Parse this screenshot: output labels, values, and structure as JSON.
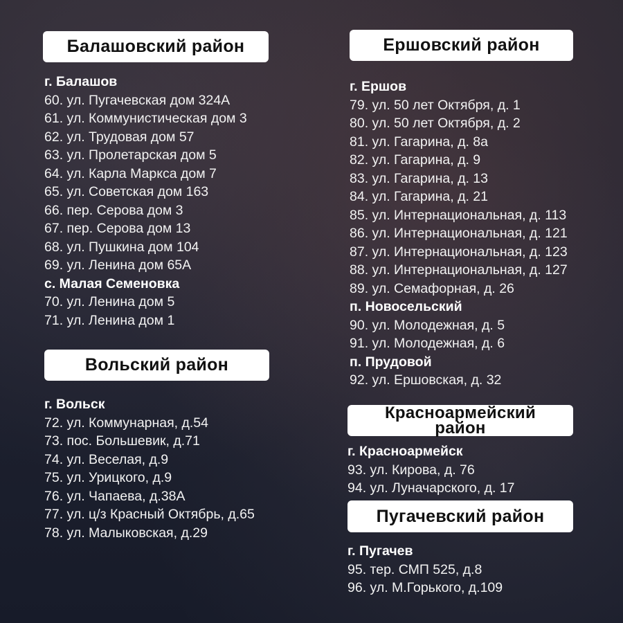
{
  "sections": {
    "balashov": {
      "title": "Балашовский район",
      "groups": [
        {
          "place": "г. Балашов",
          "items": [
            "60. ул. Пугачевская дом 324А",
            "61. ул. Коммунистическая дом 3",
            "62. ул. Трудовая дом 57",
            "63. ул. Пролетарская дом 5",
            "64. ул. Карла Маркса дом 7",
            "65. ул. Советская дом 163",
            "66. пер. Серова дом 3",
            "67. пер. Серова дом 13",
            "68. ул. Пушкина дом 104",
            "69. ул. Ленина дом 65А"
          ]
        },
        {
          "place": "с. Малая Семеновка",
          "items": [
            "70. ул. Ленина дом 5",
            "71. ул. Ленина дом 1"
          ]
        }
      ]
    },
    "volsk": {
      "title": "Вольский район",
      "groups": [
        {
          "place": "г. Вольск",
          "items": [
            "72. ул. Коммунарная, д.54",
            "73. пос. Большевик, д.71",
            "74. ул. Веселая, д.9",
            "75. ул. Урицкого, д.9",
            "76. ул. Чапаева, д.38А",
            "77. ул. ц/з Красный Октябрь, д.65",
            "78. ул. Малыковская, д.29"
          ]
        }
      ]
    },
    "ershov": {
      "title": "Ершовский район",
      "groups": [
        {
          "place": "г. Ершов",
          "items": [
            "79. ул. 50 лет Октября, д. 1",
            "80. ул. 50 лет Октября, д. 2",
            "81. ул. Гагарина, д. 8а",
            "82. ул. Гагарина, д. 9",
            "83. ул. Гагарина, д. 13",
            "84. ул. Гагарина, д. 21",
            "85. ул. Интернациональная, д. 113",
            "86. ул. Интернациональная, д. 121",
            "87. ул. Интернациональная, д. 123",
            "88. ул. Интернациональная, д. 127",
            "89. ул. Семафорная, д. 26"
          ]
        },
        {
          "place": "п. Новосельский",
          "items": [
            "90. ул. Молодежная, д. 5",
            "91. ул. Молодежная, д. 6"
          ]
        },
        {
          "place": "п. Прудовой",
          "items": [
            "92. ул. Ершовская, д. 32"
          ]
        }
      ]
    },
    "krasnoarmeisk": {
      "title_line1": "Красноармейский",
      "title_line2": "район",
      "groups": [
        {
          "place": "г. Красноармейск",
          "items": [
            "93. ул. Кирова, д. 76",
            "94. ул. Луначарского, д. 17"
          ]
        }
      ]
    },
    "pugachev": {
      "title": "Пугачевский район",
      "groups": [
        {
          "place": "г. Пугачев",
          "items": [
            "95. тер. СМП 525, д.8",
            "96. ул. М.Горького, д.109"
          ]
        }
      ]
    }
  }
}
